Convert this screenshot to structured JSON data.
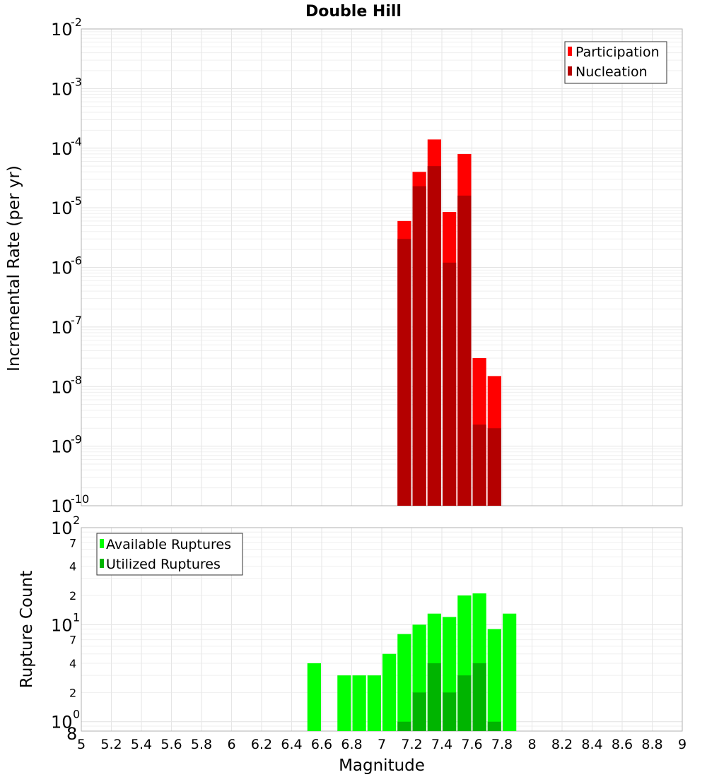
{
  "chart_data": [
    {
      "type": "bar",
      "title": "Double Hill",
      "xlabel": "Magnitude",
      "ylabel": "Incremental Rate (per yr)",
      "xlim": [
        5,
        9
      ],
      "ylim": [
        1e-10,
        0.01
      ],
      "yscale": "log",
      "x_ticks": [
        "5",
        "5.2",
        "5.4",
        "5.6",
        "5.8",
        "6",
        "6.2",
        "6.4",
        "6.6",
        "6.8",
        "7",
        "7.2",
        "7.4",
        "7.6",
        "7.8",
        "8",
        "8.2",
        "8.4",
        "8.6",
        "8.8",
        "9"
      ],
      "y_ticks": [
        {
          "base": "10",
          "exp": "-10"
        },
        {
          "base": "10",
          "exp": "-9"
        },
        {
          "base": "10",
          "exp": "-8"
        },
        {
          "base": "10",
          "exp": "-7"
        },
        {
          "base": "10",
          "exp": "-6"
        },
        {
          "base": "10",
          "exp": "-5"
        },
        {
          "base": "10",
          "exp": "-4"
        },
        {
          "base": "10",
          "exp": "-3"
        },
        {
          "base": "10",
          "exp": "-2"
        }
      ],
      "grid": true,
      "legend_position": "top-right",
      "bin_width": 0.1,
      "series": [
        {
          "name": "Participation",
          "color": "#ff0000",
          "x": [
            7.15,
            7.25,
            7.35,
            7.45,
            7.55,
            7.65,
            7.75
          ],
          "values": [
            6e-06,
            4e-05,
            0.00014,
            8.5e-06,
            8e-05,
            3e-08,
            1.5e-08
          ]
        },
        {
          "name": "Nucleation",
          "color": "#b40000",
          "x": [
            7.15,
            7.25,
            7.35,
            7.45,
            7.55,
            7.65,
            7.75
          ],
          "values": [
            3e-06,
            2.3e-05,
            5e-05,
            1.2e-06,
            1.6e-05,
            2.3e-09,
            2e-09
          ]
        }
      ]
    },
    {
      "type": "bar",
      "xlabel": "Magnitude",
      "ylabel": "Rupture Count",
      "xlim": [
        5,
        9
      ],
      "ylim": [
        0.8,
        100
      ],
      "yscale": "log",
      "y_major_ticks": [
        {
          "base": "10",
          "exp": "0"
        },
        {
          "base": "10",
          "exp": "1"
        },
        {
          "base": "10",
          "exp": "2"
        }
      ],
      "y_minor_ticks": [
        "8",
        "2",
        "4",
        "7",
        "2",
        "4",
        "7"
      ],
      "grid": true,
      "legend_position": "top-left",
      "bin_width": 0.1,
      "series": [
        {
          "name": "Available Ruptures",
          "color": "#00ff00",
          "x": [
            6.55,
            6.75,
            6.85,
            6.95,
            7.05,
            7.15,
            7.25,
            7.35,
            7.45,
            7.55,
            7.65,
            7.75,
            7.85
          ],
          "values": [
            4,
            3,
            3,
            3,
            5,
            8,
            10,
            13,
            12,
            20,
            21,
            9,
            13
          ]
        },
        {
          "name": "Utilized Ruptures",
          "color": "#00b400",
          "x": [
            7.15,
            7.25,
            7.35,
            7.45,
            7.55,
            7.65,
            7.75
          ],
          "values": [
            1,
            2,
            4,
            2,
            3,
            4,
            1
          ]
        }
      ]
    }
  ]
}
